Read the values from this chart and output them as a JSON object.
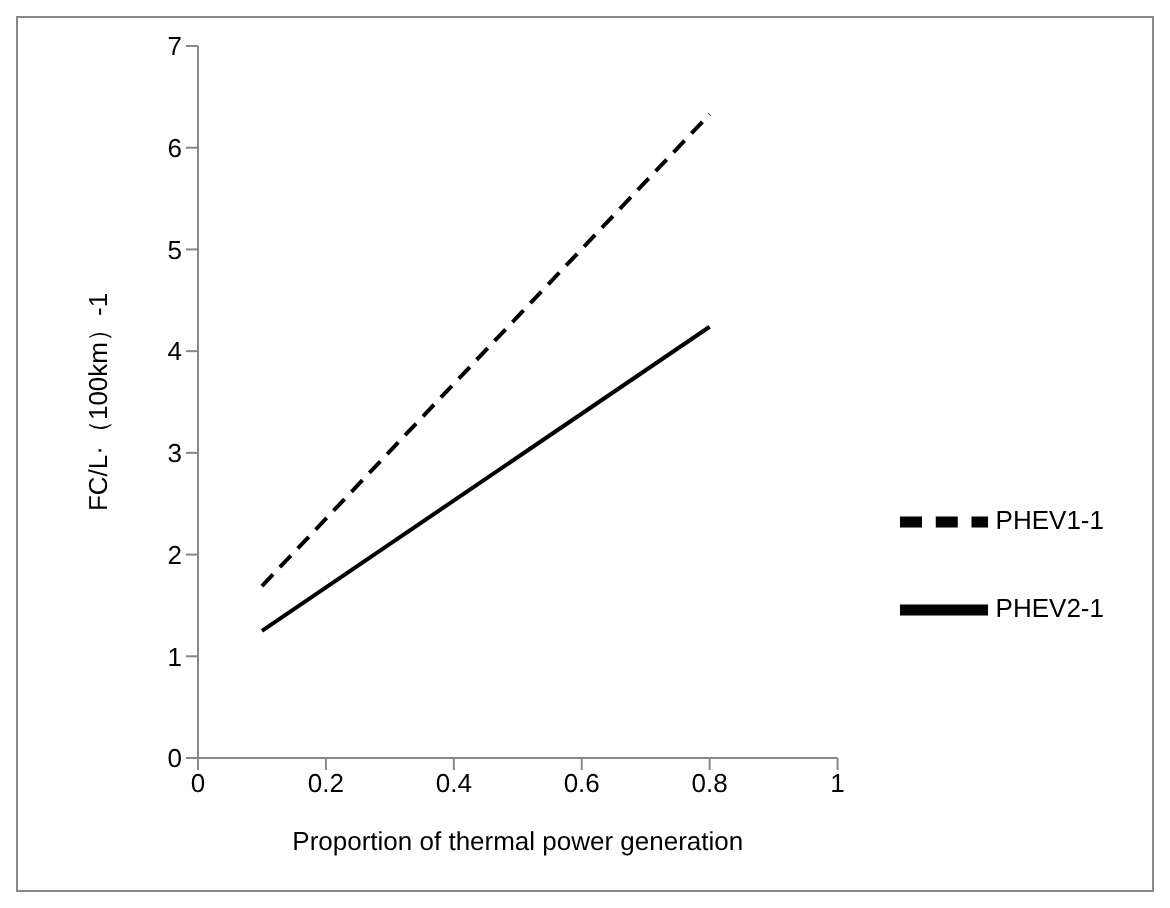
{
  "chart_data": {
    "type": "line",
    "xlabel": "Proportion of thermal power generation",
    "ylabel": "FC/L·（100km）-1",
    "x": [
      0.1,
      0.8
    ],
    "series": [
      {
        "name": "PHEV1-1",
        "color": "#000000",
        "values": [
          1.69,
          6.33
        ],
        "line_style": "dashed"
      },
      {
        "name": "PHEV2-1",
        "color": "#000000",
        "values": [
          1.25,
          4.24
        ],
        "line_style": "solid"
      }
    ],
    "xlim": [
      0,
      1
    ],
    "xticks": [
      0,
      0.2,
      0.4,
      0.6,
      0.8,
      1
    ],
    "ylim": [
      0,
      7
    ],
    "yticks": [
      0,
      1,
      2,
      3,
      4,
      5,
      6,
      7
    ],
    "grid": false,
    "legend": "right",
    "marker": "none"
  }
}
